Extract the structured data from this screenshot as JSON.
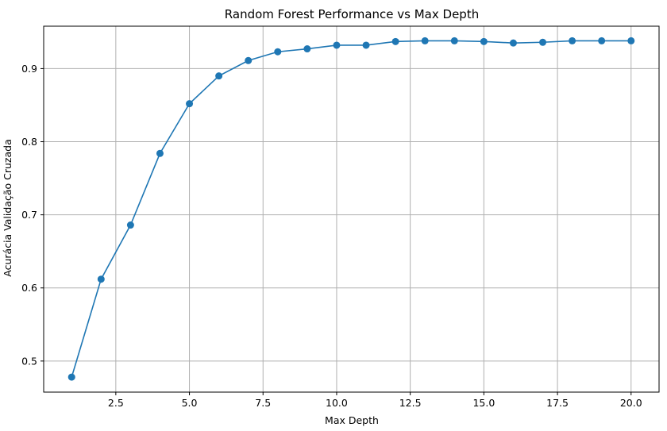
{
  "chart_data": {
    "type": "line",
    "title": "Random Forest Performance vs Max Depth",
    "xlabel": "Max Depth",
    "ylabel": "Acurácia Validação Cruzada",
    "xlim": [
      0.05,
      20.95
    ],
    "ylim": [
      0.4575,
      0.958
    ],
    "xticks": [
      2.5,
      5.0,
      7.5,
      10.0,
      12.5,
      15.0,
      17.5,
      20.0
    ],
    "xtick_labels": [
      "2.5",
      "5.0",
      "7.5",
      "10.0",
      "12.5",
      "15.0",
      "17.5",
      "20.0"
    ],
    "yticks": [
      0.5,
      0.6,
      0.7,
      0.8,
      0.9
    ],
    "ytick_labels": [
      "0.5",
      "0.6",
      "0.7",
      "0.8",
      "0.9"
    ],
    "grid": true,
    "series": [
      {
        "color": "#1f77b4",
        "marker": "circle",
        "x": [
          1,
          2,
          3,
          4,
          5,
          6,
          7,
          8,
          9,
          10,
          11,
          12,
          13,
          14,
          15,
          16,
          17,
          18,
          19,
          20
        ],
        "y": [
          0.478,
          0.612,
          0.686,
          0.784,
          0.852,
          0.89,
          0.911,
          0.923,
          0.927,
          0.932,
          0.932,
          0.937,
          0.938,
          0.938,
          0.937,
          0.935,
          0.936,
          0.938,
          0.938,
          0.938
        ]
      }
    ]
  }
}
